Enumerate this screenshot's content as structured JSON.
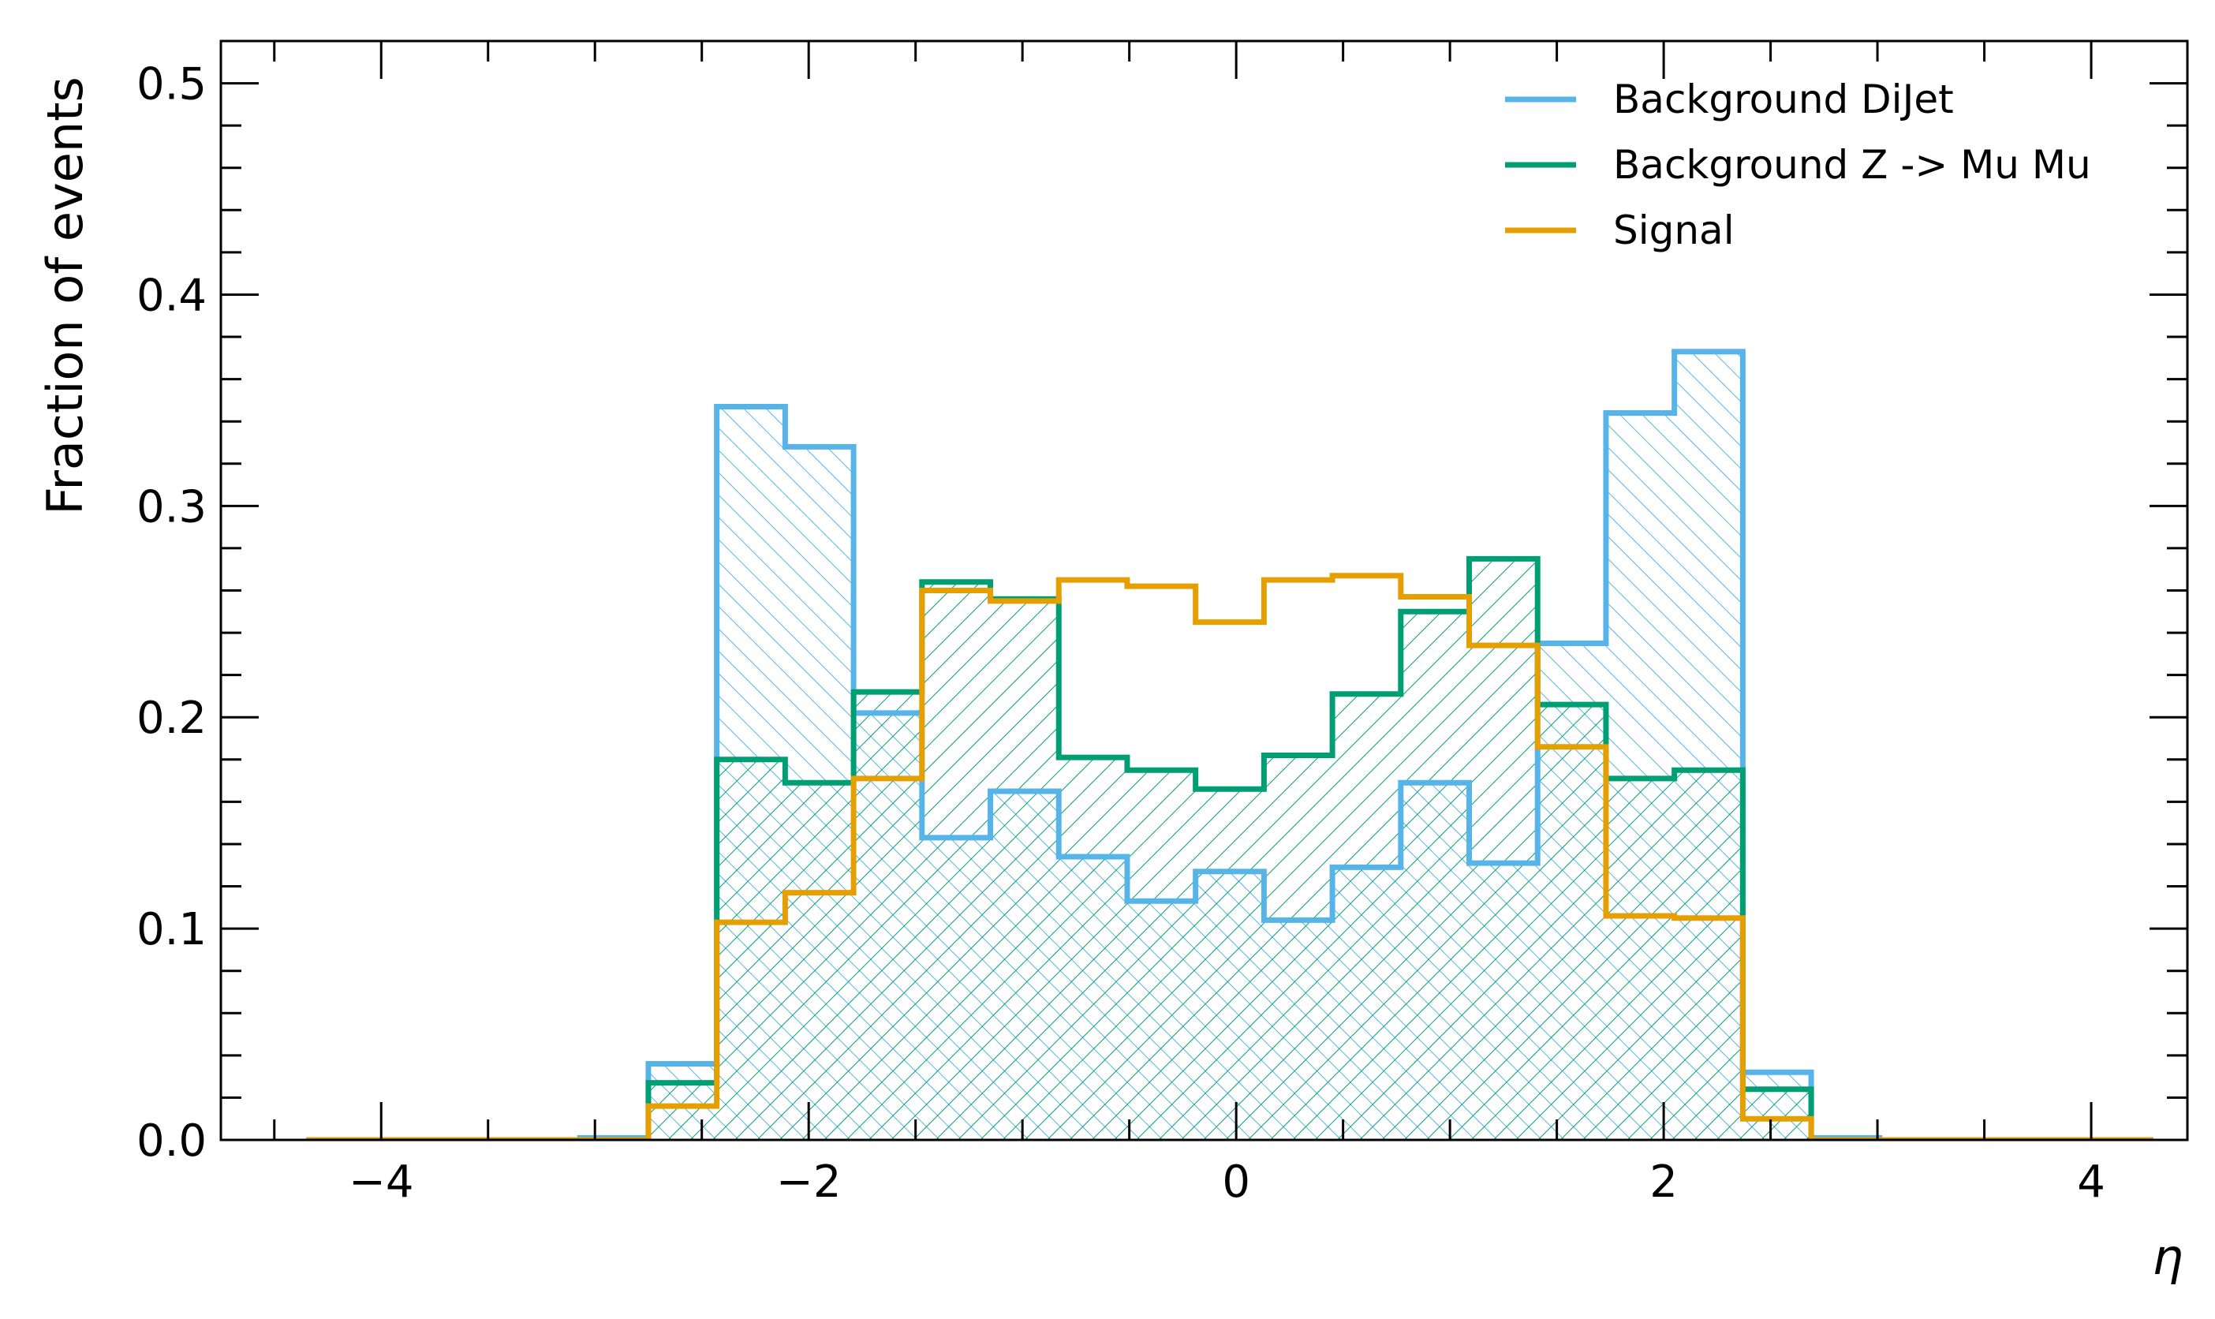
{
  "chart_data": {
    "type": "histogram-step",
    "title": "",
    "xlabel": "η",
    "ylabel": "Fraction of events",
    "xlim": [
      -4.75,
      4.45
    ],
    "ylim": [
      0.0,
      0.52
    ],
    "x_ticks": [
      -4,
      -2,
      0,
      2,
      4
    ],
    "x_tick_labels": [
      "−4",
      "−2",
      "0",
      "2",
      "4"
    ],
    "y_ticks": [
      0.0,
      0.1,
      0.2,
      0.3,
      0.4,
      0.5
    ],
    "y_tick_labels": [
      "0.0",
      "0.1",
      "0.2",
      "0.3",
      "0.4",
      "0.5"
    ],
    "legend_position": "top-right",
    "bin_edges": [
      -4.35,
      -4.03,
      -3.71,
      -3.39,
      -3.07,
      -2.75,
      -2.43,
      -2.11,
      -1.79,
      -1.47,
      -1.15,
      -0.83,
      -0.51,
      -0.19,
      0.13,
      0.45,
      0.77,
      1.09,
      1.41,
      1.73,
      2.05,
      2.37,
      2.69,
      3.01,
      3.33,
      3.65,
      3.97,
      4.29
    ],
    "series": [
      {
        "name": "Background DiJet",
        "color": "#56b4e9",
        "hatch": "backslash",
        "values": [
          0.0,
          0.0,
          0.0,
          0.0,
          0.001,
          0.036,
          0.347,
          0.328,
          0.202,
          0.143,
          0.165,
          0.134,
          0.113,
          0.127,
          0.104,
          0.129,
          0.169,
          0.131,
          0.235,
          0.344,
          0.373,
          0.032,
          0.001,
          0.0,
          0.0,
          0.0,
          0.0
        ]
      },
      {
        "name": "Background Z -> Mu Mu",
        "color": "#009e73",
        "hatch": "slash",
        "values": [
          0.0,
          0.0,
          0.0,
          0.0,
          0.0,
          0.027,
          0.18,
          0.169,
          0.212,
          0.264,
          0.256,
          0.181,
          0.175,
          0.166,
          0.182,
          0.211,
          0.25,
          0.275,
          0.206,
          0.171,
          0.175,
          0.024,
          0.0,
          0.0,
          0.0,
          0.0,
          0.0
        ]
      },
      {
        "name": "Signal",
        "color": "#e69f00",
        "hatch": "none",
        "values": [
          0.0,
          0.0,
          0.0,
          0.0,
          0.0,
          0.016,
          0.103,
          0.117,
          0.171,
          0.26,
          0.255,
          0.265,
          0.262,
          0.245,
          0.265,
          0.267,
          0.257,
          0.234,
          0.186,
          0.106,
          0.105,
          0.01,
          0.0,
          0.0,
          0.0,
          0.0,
          0.0
        ]
      }
    ]
  }
}
